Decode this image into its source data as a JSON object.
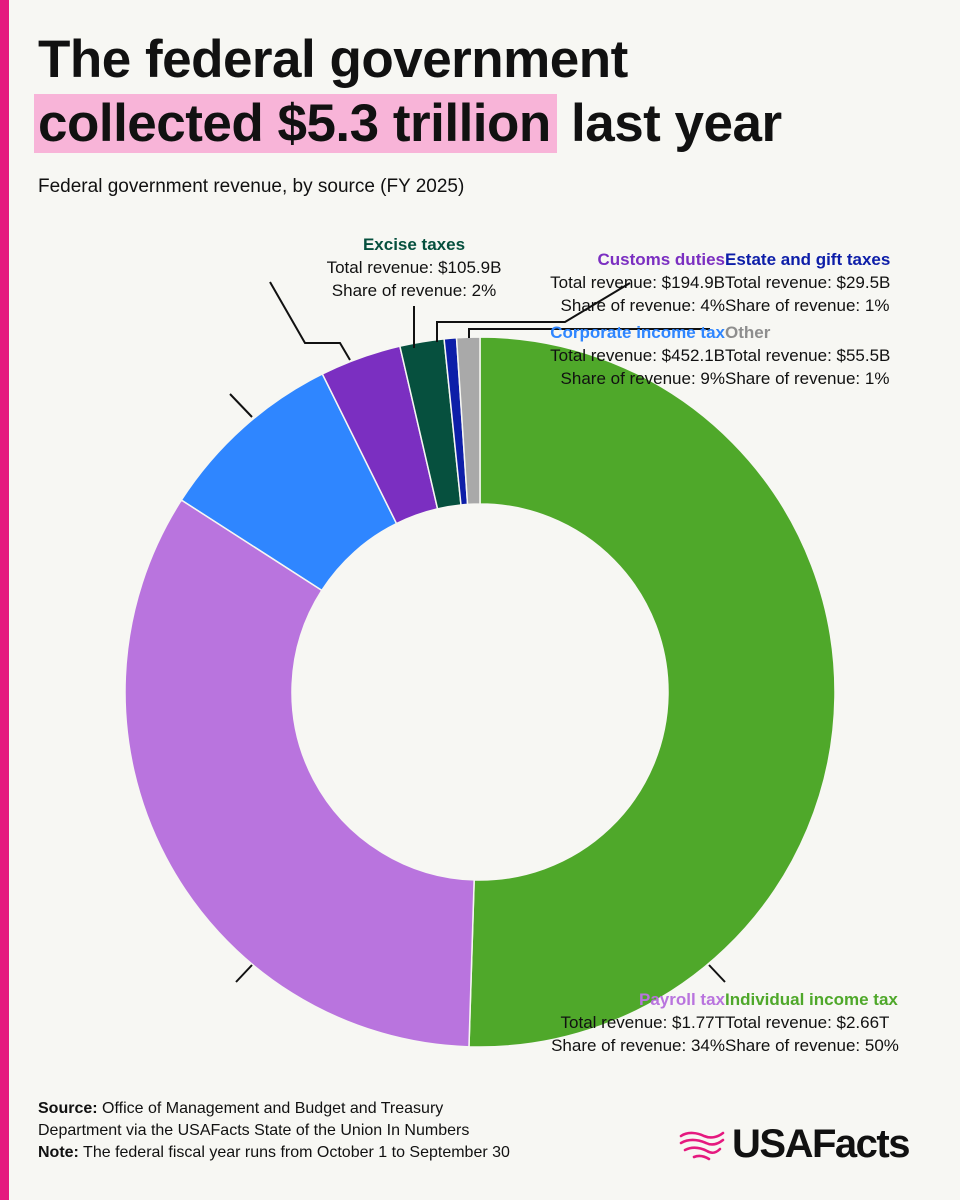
{
  "header": {
    "title_line1": "The federal government",
    "title_highlight": "collected $5.3 trillion",
    "title_rest": " last year",
    "subtitle": "Federal government revenue, by source (FY 2025)"
  },
  "chart_data": {
    "type": "pie",
    "title": "Federal government revenue, by source (FY 2025)",
    "total_label": "$5.3 trillion",
    "series": [
      {
        "key": "individual",
        "name": "Individual income tax",
        "value_label": "$2.66T",
        "value_billions": 2660,
        "share": 50,
        "share_label": "50%",
        "color": "#4fa82a",
        "title_color": "#4fa82a"
      },
      {
        "key": "payroll",
        "name": "Payroll tax",
        "value_label": "$1.77T",
        "value_billions": 1770,
        "share": 34,
        "share_label": "34%",
        "color": "#b974de",
        "title_color": "#b974de"
      },
      {
        "key": "corporate",
        "name": "Corporate income tax",
        "value_label": "$452.1B",
        "value_billions": 452.1,
        "share": 9,
        "share_label": "9%",
        "color": "#2f86ff",
        "title_color": "#2f86ff"
      },
      {
        "key": "customs",
        "name": "Customs duties",
        "value_label": "$194.9B",
        "value_billions": 194.9,
        "share": 4,
        "share_label": "4%",
        "color": "#7b2fc1",
        "title_color": "#7b2fc1"
      },
      {
        "key": "excise",
        "name": "Excise taxes",
        "value_label": "$105.9B",
        "value_billions": 105.9,
        "share": 2,
        "share_label": "2%",
        "color": "#06503e",
        "title_color": "#06503e"
      },
      {
        "key": "estate",
        "name": "Estate and gift taxes",
        "value_label": "$29.5B",
        "value_billions": 29.5,
        "share": 1,
        "share_label": "1%",
        "color": "#0d1ea8",
        "title_color": "#0d1ea8"
      },
      {
        "key": "other",
        "name": "Other",
        "value_label": "$55.5B",
        "value_billions": 55.5,
        "share": 1,
        "share_label": "1%",
        "color": "#a9a9a9",
        "title_color": "#8e8e8e"
      }
    ],
    "total_prefix": "Total revenue: ",
    "share_prefix": "Share of revenue: "
  },
  "footer": {
    "source_label": "Source:",
    "source_text": " Office of Management and Budget and Treasury",
    "source_text2": "Department via the USAFacts State of the Union In Numbers",
    "note_label": "Note:",
    "note_text": " The federal fiscal year runs from October 1 to September 30"
  },
  "logo": {
    "text": "USAFacts",
    "color": "#e5197f"
  }
}
